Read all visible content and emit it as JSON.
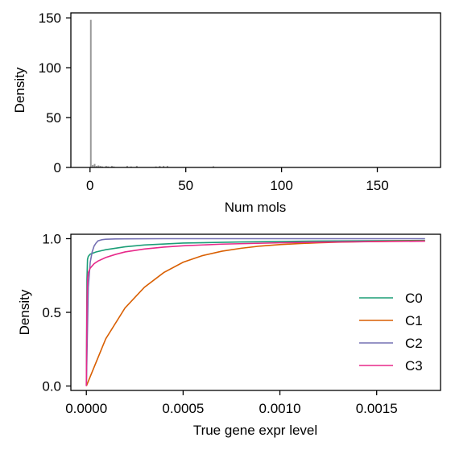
{
  "chart_data": [
    {
      "type": "bar",
      "title": "",
      "xlabel": "Num mols",
      "ylabel": "Density",
      "xlim": [
        -10,
        183
      ],
      "ylim": [
        0,
        155
      ],
      "xticks": [
        0,
        50,
        100,
        150
      ],
      "yticks": [
        0,
        50,
        100,
        150
      ],
      "bar_color": "#999999",
      "bins": [
        {
          "x": 0.5,
          "value": 148
        },
        {
          "x": 1.5,
          "value": 2.5
        },
        {
          "x": 2.5,
          "value": 3.5
        },
        {
          "x": 3.5,
          "value": 1.5
        },
        {
          "x": 4.5,
          "value": 2.0
        },
        {
          "x": 5.5,
          "value": 1.5
        },
        {
          "x": 6.5,
          "value": 1.0
        },
        {
          "x": 8.5,
          "value": 1.5
        },
        {
          "x": 9.5,
          "value": 1.0
        },
        {
          "x": 11.5,
          "value": 1.5
        },
        {
          "x": 12.5,
          "value": 1.0
        },
        {
          "x": 19.5,
          "value": 1.5
        },
        {
          "x": 21.5,
          "value": 1.0
        },
        {
          "x": 24.5,
          "value": 1.5
        },
        {
          "x": 34.5,
          "value": 1.0
        },
        {
          "x": 36.5,
          "value": 1.5
        },
        {
          "x": 38.5,
          "value": 1.5
        },
        {
          "x": 40.5,
          "value": 1.5
        },
        {
          "x": 64.5,
          "value": 1.2
        }
      ]
    },
    {
      "type": "line",
      "title": "",
      "xlabel": "True gene expr level",
      "ylabel": "Density",
      "xlim": [
        -8e-05,
        0.00183
      ],
      "ylim": [
        -0.03,
        1.03
      ],
      "xticks": [
        "0.0000",
        "0.0005",
        "0.0010",
        "0.0015"
      ],
      "xtick_values": [
        0,
        0.0005,
        0.001,
        0.0015
      ],
      "yticks": [
        "0.0",
        "0.5",
        "1.0"
      ],
      "ytick_values": [
        0,
        0.5,
        1.0
      ],
      "legend_position": "lower-right",
      "series": [
        {
          "name": "C0",
          "color": "#1b9e77",
          "x": [
            0,
            3e-06,
            6e-06,
            1e-05,
            2e-05,
            5e-05,
            0.0001,
            0.0002,
            0.0003,
            0.0005,
            0.0008,
            0.0012,
            0.00175
          ],
          "y": [
            0,
            0.72,
            0.86,
            0.88,
            0.895,
            0.91,
            0.925,
            0.945,
            0.957,
            0.97,
            0.978,
            0.984,
            0.988
          ]
        },
        {
          "name": "C1",
          "color": "#d95f02",
          "x": [
            0,
            0.0001,
            0.0002,
            0.0003,
            0.0004,
            0.0005,
            0.0006,
            0.0007,
            0.0008,
            0.0009,
            0.001,
            0.0011,
            0.0012,
            0.0013,
            0.0014,
            0.0015,
            0.0016,
            0.00175
          ],
          "y": [
            0,
            0.32,
            0.53,
            0.67,
            0.77,
            0.84,
            0.885,
            0.915,
            0.935,
            0.95,
            0.96,
            0.967,
            0.972,
            0.976,
            0.979,
            0.981,
            0.983,
            0.985
          ]
        },
        {
          "name": "C2",
          "color": "#7570b3",
          "x": [
            0,
            1e-05,
            2e-05,
            3e-05,
            4e-05,
            5e-05,
            6e-05,
            8e-05,
            0.0001,
            0.00015,
            0.0002,
            0.0004,
            0.00175
          ],
          "y": [
            0,
            0.67,
            0.84,
            0.91,
            0.95,
            0.97,
            0.985,
            0.993,
            0.996,
            0.998,
            0.999,
            1.0,
            1.0
          ]
        },
        {
          "name": "C3",
          "color": "#e7298a",
          "x": [
            0,
            3e-06,
            6e-06,
            1e-05,
            2e-05,
            4e-05,
            6e-05,
            0.0001,
            0.00015,
            0.0002,
            0.0003,
            0.0004,
            0.0005,
            0.0007,
            0.001,
            0.0013,
            0.00175
          ],
          "y": [
            0,
            0.55,
            0.72,
            0.77,
            0.8,
            0.83,
            0.848,
            0.872,
            0.893,
            0.91,
            0.93,
            0.943,
            0.952,
            0.963,
            0.972,
            0.978,
            0.983
          ]
        }
      ]
    }
  ]
}
